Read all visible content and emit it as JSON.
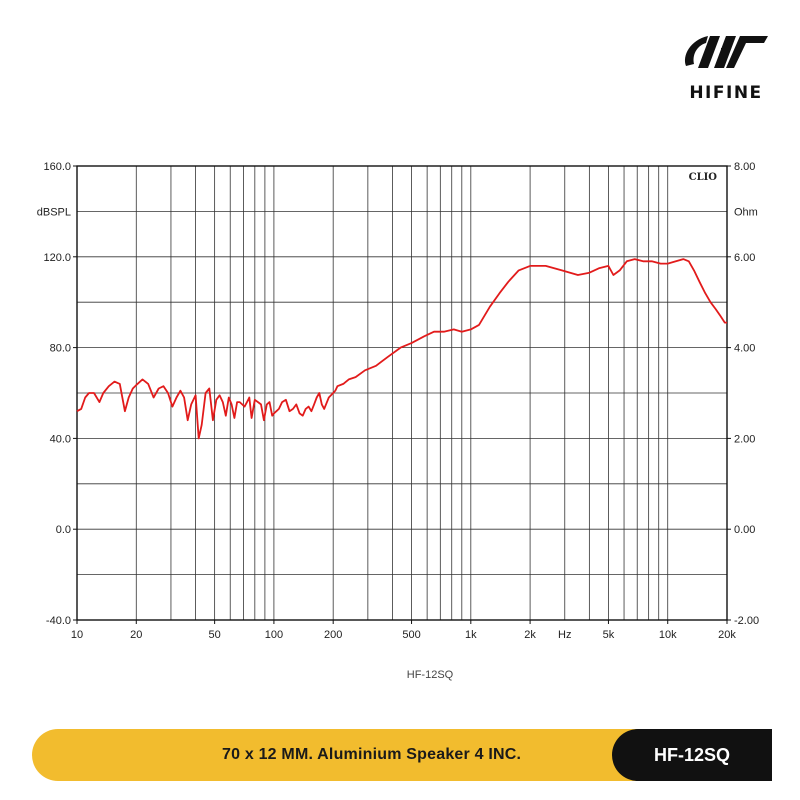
{
  "brand": {
    "name": "HIFINE"
  },
  "banner": {
    "description": "70 x 12 MM. Aluminium Speaker 4 INC.",
    "model": "HF-12SQ",
    "colors": {
      "yellow": "#F2BC2E",
      "black": "#111111"
    }
  },
  "chart_data": {
    "type": "line",
    "title": "",
    "caption": "HF-12SQ",
    "corner_label": "CLIO",
    "xlabel": "Hz",
    "x_scale": "log",
    "xlim": [
      10,
      20000
    ],
    "x_ticks": [
      {
        "v": 10,
        "label": "10"
      },
      {
        "v": 20,
        "label": "20"
      },
      {
        "v": 50,
        "label": "50"
      },
      {
        "v": 100,
        "label": "100"
      },
      {
        "v": 200,
        "label": "200"
      },
      {
        "v": 500,
        "label": "500"
      },
      {
        "v": 1000,
        "label": "1k"
      },
      {
        "v": 2000,
        "label": "2k"
      },
      {
        "v": 5000,
        "label": "5k"
      },
      {
        "v": 10000,
        "label": "10k"
      },
      {
        "v": 20000,
        "label": "20k"
      }
    ],
    "ylabel": "dBSPL",
    "ylim": [
      -40,
      160
    ],
    "y_ticks": [
      {
        "v": 160,
        "label": "160.0"
      },
      {
        "v": 120,
        "label": "120.0"
      },
      {
        "v": 80,
        "label": "80.0"
      },
      {
        "v": 40,
        "label": "40.0"
      },
      {
        "v": 0,
        "label": "0.0"
      },
      {
        "v": -40,
        "label": "-40.0"
      }
    ],
    "y2label": "Ohm",
    "y2lim": [
      -2,
      8
    ],
    "y2_ticks": [
      {
        "v": 8,
        "label": "8.00"
      },
      {
        "v": 6,
        "label": "6.00"
      },
      {
        "v": 4,
        "label": "4.00"
      },
      {
        "v": 2,
        "label": "2.00"
      },
      {
        "v": 0,
        "label": "0.00"
      },
      {
        "v": -2,
        "label": "-2.00"
      }
    ],
    "grid": true,
    "line_color": "#E21B1B",
    "series": [
      {
        "x": [
          10,
          10.5,
          11,
          11.5,
          12.2,
          13,
          13.6,
          14.5,
          15.5,
          16.5,
          17.5,
          18.3,
          19.2,
          20.3,
          21.5,
          23,
          24.5,
          26,
          27.5,
          29,
          30.5,
          32,
          33.5,
          35,
          36.5,
          38,
          40,
          41.5,
          43,
          45,
          47,
          49,
          51,
          53,
          55,
          57,
          59,
          61,
          63,
          65,
          67,
          69,
          71,
          73,
          75,
          77,
          80,
          83,
          86,
          89,
          92,
          95,
          98,
          100,
          103,
          106,
          110,
          115,
          120,
          125,
          130,
          135,
          140,
          145,
          150,
          155,
          160,
          165,
          170,
          175,
          180,
          190,
          200,
          205,
          210,
          225,
          240,
          260,
          290,
          330,
          380,
          440,
          500,
          580,
          650,
          730,
          820,
          900,
          1000,
          1100,
          1250,
          1400,
          1550,
          1750,
          2000,
          2400,
          2900,
          3500,
          4000,
          4500,
          5000,
          5300,
          5700,
          6200,
          6800,
          7500,
          8300,
          9200,
          10000,
          11000,
          12000,
          12800,
          13600,
          14500,
          15500,
          16500,
          17500,
          18500,
          19500,
          20000
        ],
        "y": [
          52,
          53,
          58,
          60,
          60,
          56,
          60,
          63,
          65,
          64,
          52,
          58,
          62,
          64,
          66,
          64,
          58,
          62,
          63,
          60,
          54,
          58,
          61,
          58,
          48,
          55,
          59,
          40,
          46,
          60,
          62,
          48,
          57,
          59,
          56,
          50,
          58,
          55,
          49,
          56,
          56,
          55,
          54,
          56,
          58,
          49,
          57,
          56,
          55,
          48,
          55,
          56,
          50,
          51,
          52,
          53,
          56,
          57,
          52,
          53,
          55,
          51,
          50,
          53,
          54,
          52,
          55,
          58,
          60,
          55,
          53,
          58,
          60,
          61,
          63,
          64,
          66,
          67,
          70,
          72,
          76,
          80,
          82,
          85,
          87,
          87,
          88,
          87,
          88,
          90,
          98,
          104,
          109,
          114,
          116,
          116,
          114,
          112,
          113,
          115,
          116,
          112,
          114,
          118,
          119,
          118,
          118,
          117,
          117,
          118,
          119,
          118,
          114,
          109,
          104,
          100,
          97,
          94,
          91,
          91
        ]
      }
    ]
  }
}
